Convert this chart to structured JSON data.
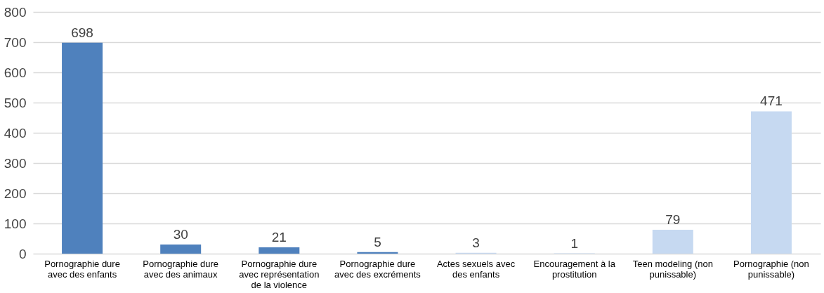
{
  "chart_data": {
    "type": "bar",
    "categories": [
      "Pornographie dure avec des enfants",
      "Pornographie dure avec des animaux",
      "Pornographie dure avec représentation de la violence",
      "Pornographie dure avec des excréments",
      "Actes sexuels avec des enfants",
      "Encouragement à la prostitution",
      "Teen modeling (non punissable)",
      "Pornographie (non punissable)"
    ],
    "values": [
      698,
      30,
      21,
      5,
      3,
      1,
      79,
      471
    ],
    "colors": [
      "#4f81bd",
      "#4f81bd",
      "#4f81bd",
      "#4f81bd",
      "#c6d9f1",
      "#c6d9f1",
      "#c6d9f1",
      "#c6d9f1"
    ],
    "ylim": [
      0,
      800
    ],
    "yticks": [
      0,
      100,
      200,
      300,
      400,
      500,
      600,
      700,
      800
    ],
    "grid": "y",
    "data_labels": true
  }
}
